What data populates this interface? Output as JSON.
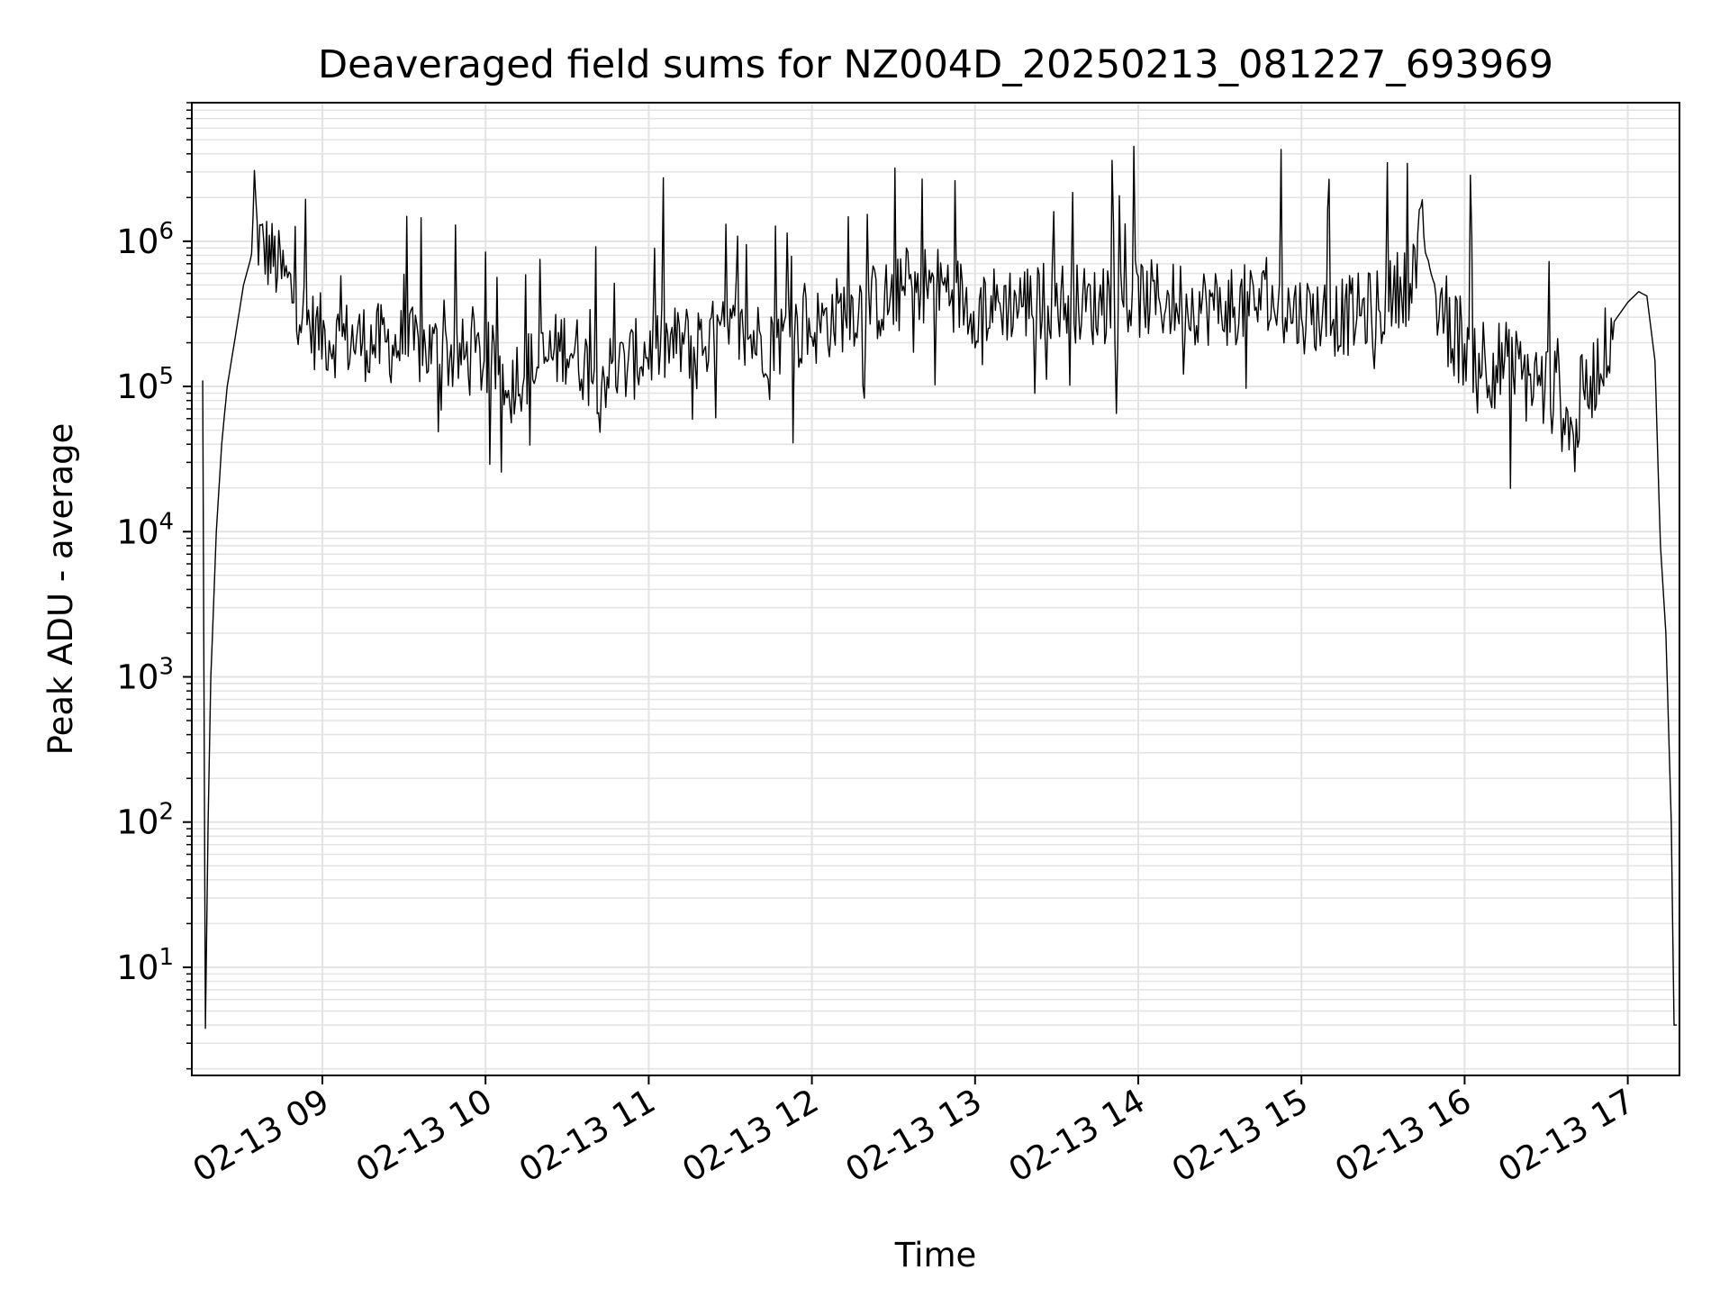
{
  "chart_data": {
    "type": "line",
    "title": "Deaveraged field sums for NZ004D_20250213_081227_693969",
    "xlabel": "Time",
    "ylabel": "Peak ADU - average",
    "y_scale": "log",
    "ylim": [
      1.8,
      9000000
    ],
    "xlim": [
      "2025-02-13 08:12",
      "2025-02-13 17:19"
    ],
    "grid": true,
    "grid_which": "both",
    "line_color": "#000000",
    "grid_color": "#e3e3e3",
    "x_ticks": [
      {
        "value": "2025-02-13 09:00",
        "label": "02-13 09"
      },
      {
        "value": "2025-02-13 10:00",
        "label": "02-13 10"
      },
      {
        "value": "2025-02-13 11:00",
        "label": "02-13 11"
      },
      {
        "value": "2025-02-13 12:00",
        "label": "02-13 12"
      },
      {
        "value": "2025-02-13 13:00",
        "label": "02-13 13"
      },
      {
        "value": "2025-02-13 14:00",
        "label": "02-13 14"
      },
      {
        "value": "2025-02-13 15:00",
        "label": "02-13 15"
      },
      {
        "value": "2025-02-13 16:00",
        "label": "02-13 16"
      },
      {
        "value": "2025-02-13 17:00",
        "label": "02-13 17"
      }
    ],
    "y_ticks": [
      {
        "value": 10,
        "base": "10",
        "exp": "1"
      },
      {
        "value": 100,
        "base": "10",
        "exp": "2"
      },
      {
        "value": 1000,
        "base": "10",
        "exp": "3"
      },
      {
        "value": 10000,
        "base": "10",
        "exp": "4"
      },
      {
        "value": 100000,
        "base": "10",
        "exp": "5"
      },
      {
        "value": 1000000,
        "base": "10",
        "exp": "6"
      }
    ],
    "series": [
      {
        "x": [
          "2025-02-13 08:16",
          "2025-02-13 08:17",
          "2025-02-13 08:18",
          "2025-02-13 08:19",
          "2025-02-13 08:21",
          "2025-02-13 08:23",
          "2025-02-13 08:25",
          "2025-02-13 08:28",
          "2025-02-13 08:31",
          "2025-02-13 08:34",
          "2025-02-13 08:35",
          "2025-02-13 08:36",
          "2025-02-13 08:38",
          "2025-02-13 08:41",
          "2025-02-13 08:45",
          "2025-02-13 08:50",
          "2025-02-13 08:56",
          "2025-02-13 09:02",
          "2025-02-13 09:10",
          "2025-02-13 09:20",
          "2025-02-13 09:30",
          "2025-02-13 09:40",
          "2025-02-13 09:50",
          "2025-02-13 10:00",
          "2025-02-13 10:10",
          "2025-02-13 10:20",
          "2025-02-13 10:30",
          "2025-02-13 10:40",
          "2025-02-13 10:50",
          "2025-02-13 11:00",
          "2025-02-13 11:15",
          "2025-02-13 11:30",
          "2025-02-13 11:45",
          "2025-02-13 12:00",
          "2025-02-13 12:15",
          "2025-02-13 12:30",
          "2025-02-13 12:40",
          "2025-02-13 12:50",
          "2025-02-13 13:00",
          "2025-02-13 13:15",
          "2025-02-13 13:30",
          "2025-02-13 13:45",
          "2025-02-13 14:00",
          "2025-02-13 14:15",
          "2025-02-13 14:30",
          "2025-02-13 14:45",
          "2025-02-13 15:00",
          "2025-02-13 15:15",
          "2025-02-13 15:30",
          "2025-02-13 15:40",
          "2025-02-13 15:45",
          "2025-02-13 15:50",
          "2025-02-13 15:55",
          "2025-02-13 16:00",
          "2025-02-13 16:10",
          "2025-02-13 16:20",
          "2025-02-13 16:30",
          "2025-02-13 16:40",
          "2025-02-13 16:50",
          "2025-02-13 16:55",
          "2025-02-13 17:00",
          "2025-02-13 17:04",
          "2025-02-13 17:07",
          "2025-02-13 17:10",
          "2025-02-13 17:12",
          "2025-02-13 17:14",
          "2025-02-13 17:16",
          "2025-02-13 17:17",
          "2025-02-13 17:18"
        ],
        "y": [
          110000,
          3.8,
          100,
          1000,
          10000,
          40000,
          100000,
          220000,
          500000,
          800000,
          3000000,
          1100000,
          900000,
          800000,
          600000,
          400000,
          250000,
          220000,
          210000,
          200000,
          190000,
          180000,
          160000,
          150000,
          120000,
          140000,
          200000,
          120000,
          130000,
          180000,
          200000,
          220000,
          210000,
          250000,
          350000,
          400000,
          520000,
          480000,
          350000,
          380000,
          400000,
          350000,
          400000,
          380000,
          350000,
          380000,
          320000,
          300000,
          350000,
          600000,
          1000000,
          400000,
          250000,
          200000,
          150000,
          120000,
          100000,
          60000,
          150000,
          280000,
          380000,
          450000,
          420000,
          150000,
          8000,
          2000,
          100,
          4,
          4
        ]
      }
    ]
  }
}
